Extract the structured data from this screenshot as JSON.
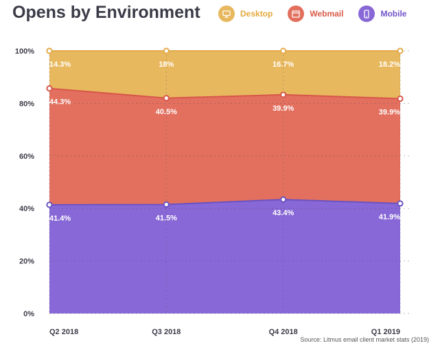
{
  "title": "Opens by Environment",
  "legend": [
    {
      "label": "Desktop",
      "color": "#e8b85e",
      "text_color": "#e3a93a",
      "icon": "monitor-icon"
    },
    {
      "label": "Webmail",
      "color": "#e3705f",
      "text_color": "#d95a48",
      "icon": "browser-window-icon"
    },
    {
      "label": "Mobile",
      "color": "#8868d6",
      "text_color": "#6f52c9",
      "icon": "smartphone-icon"
    }
  ],
  "source": "Source: Litmus email client market stats (2019)",
  "chart_data": {
    "type": "area",
    "stacked": true,
    "categories": [
      "Q2 2018",
      "Q3 2018",
      "Q4 2018",
      "Q1 2019"
    ],
    "series": [
      {
        "name": "Mobile",
        "values": [
          41.4,
          41.5,
          43.4,
          41.9
        ],
        "labels": [
          "41.4%",
          "41.5%",
          "43.4%",
          "41.9%"
        ],
        "color": "#8868d6",
        "line_color": "#6a52c2"
      },
      {
        "name": "Webmail",
        "values": [
          44.3,
          40.5,
          39.9,
          39.9
        ],
        "labels": [
          "44.3%",
          "40.5%",
          "39.9%",
          "39.9%"
        ],
        "color": "#e3705f",
        "line_color": "#d6564a"
      },
      {
        "name": "Desktop",
        "values": [
          14.3,
          18,
          16.7,
          18.2
        ],
        "labels": [
          "14.3%",
          "18%",
          "16.7%",
          "18.2%"
        ],
        "color": "#e8b85e",
        "line_color": "#e3a94a"
      }
    ],
    "yticks": [
      "0%",
      "20%",
      "40%",
      "60%",
      "80%",
      "100%"
    ],
    "ylim": [
      0,
      100
    ],
    "grid": true,
    "legend_position": "top"
  }
}
